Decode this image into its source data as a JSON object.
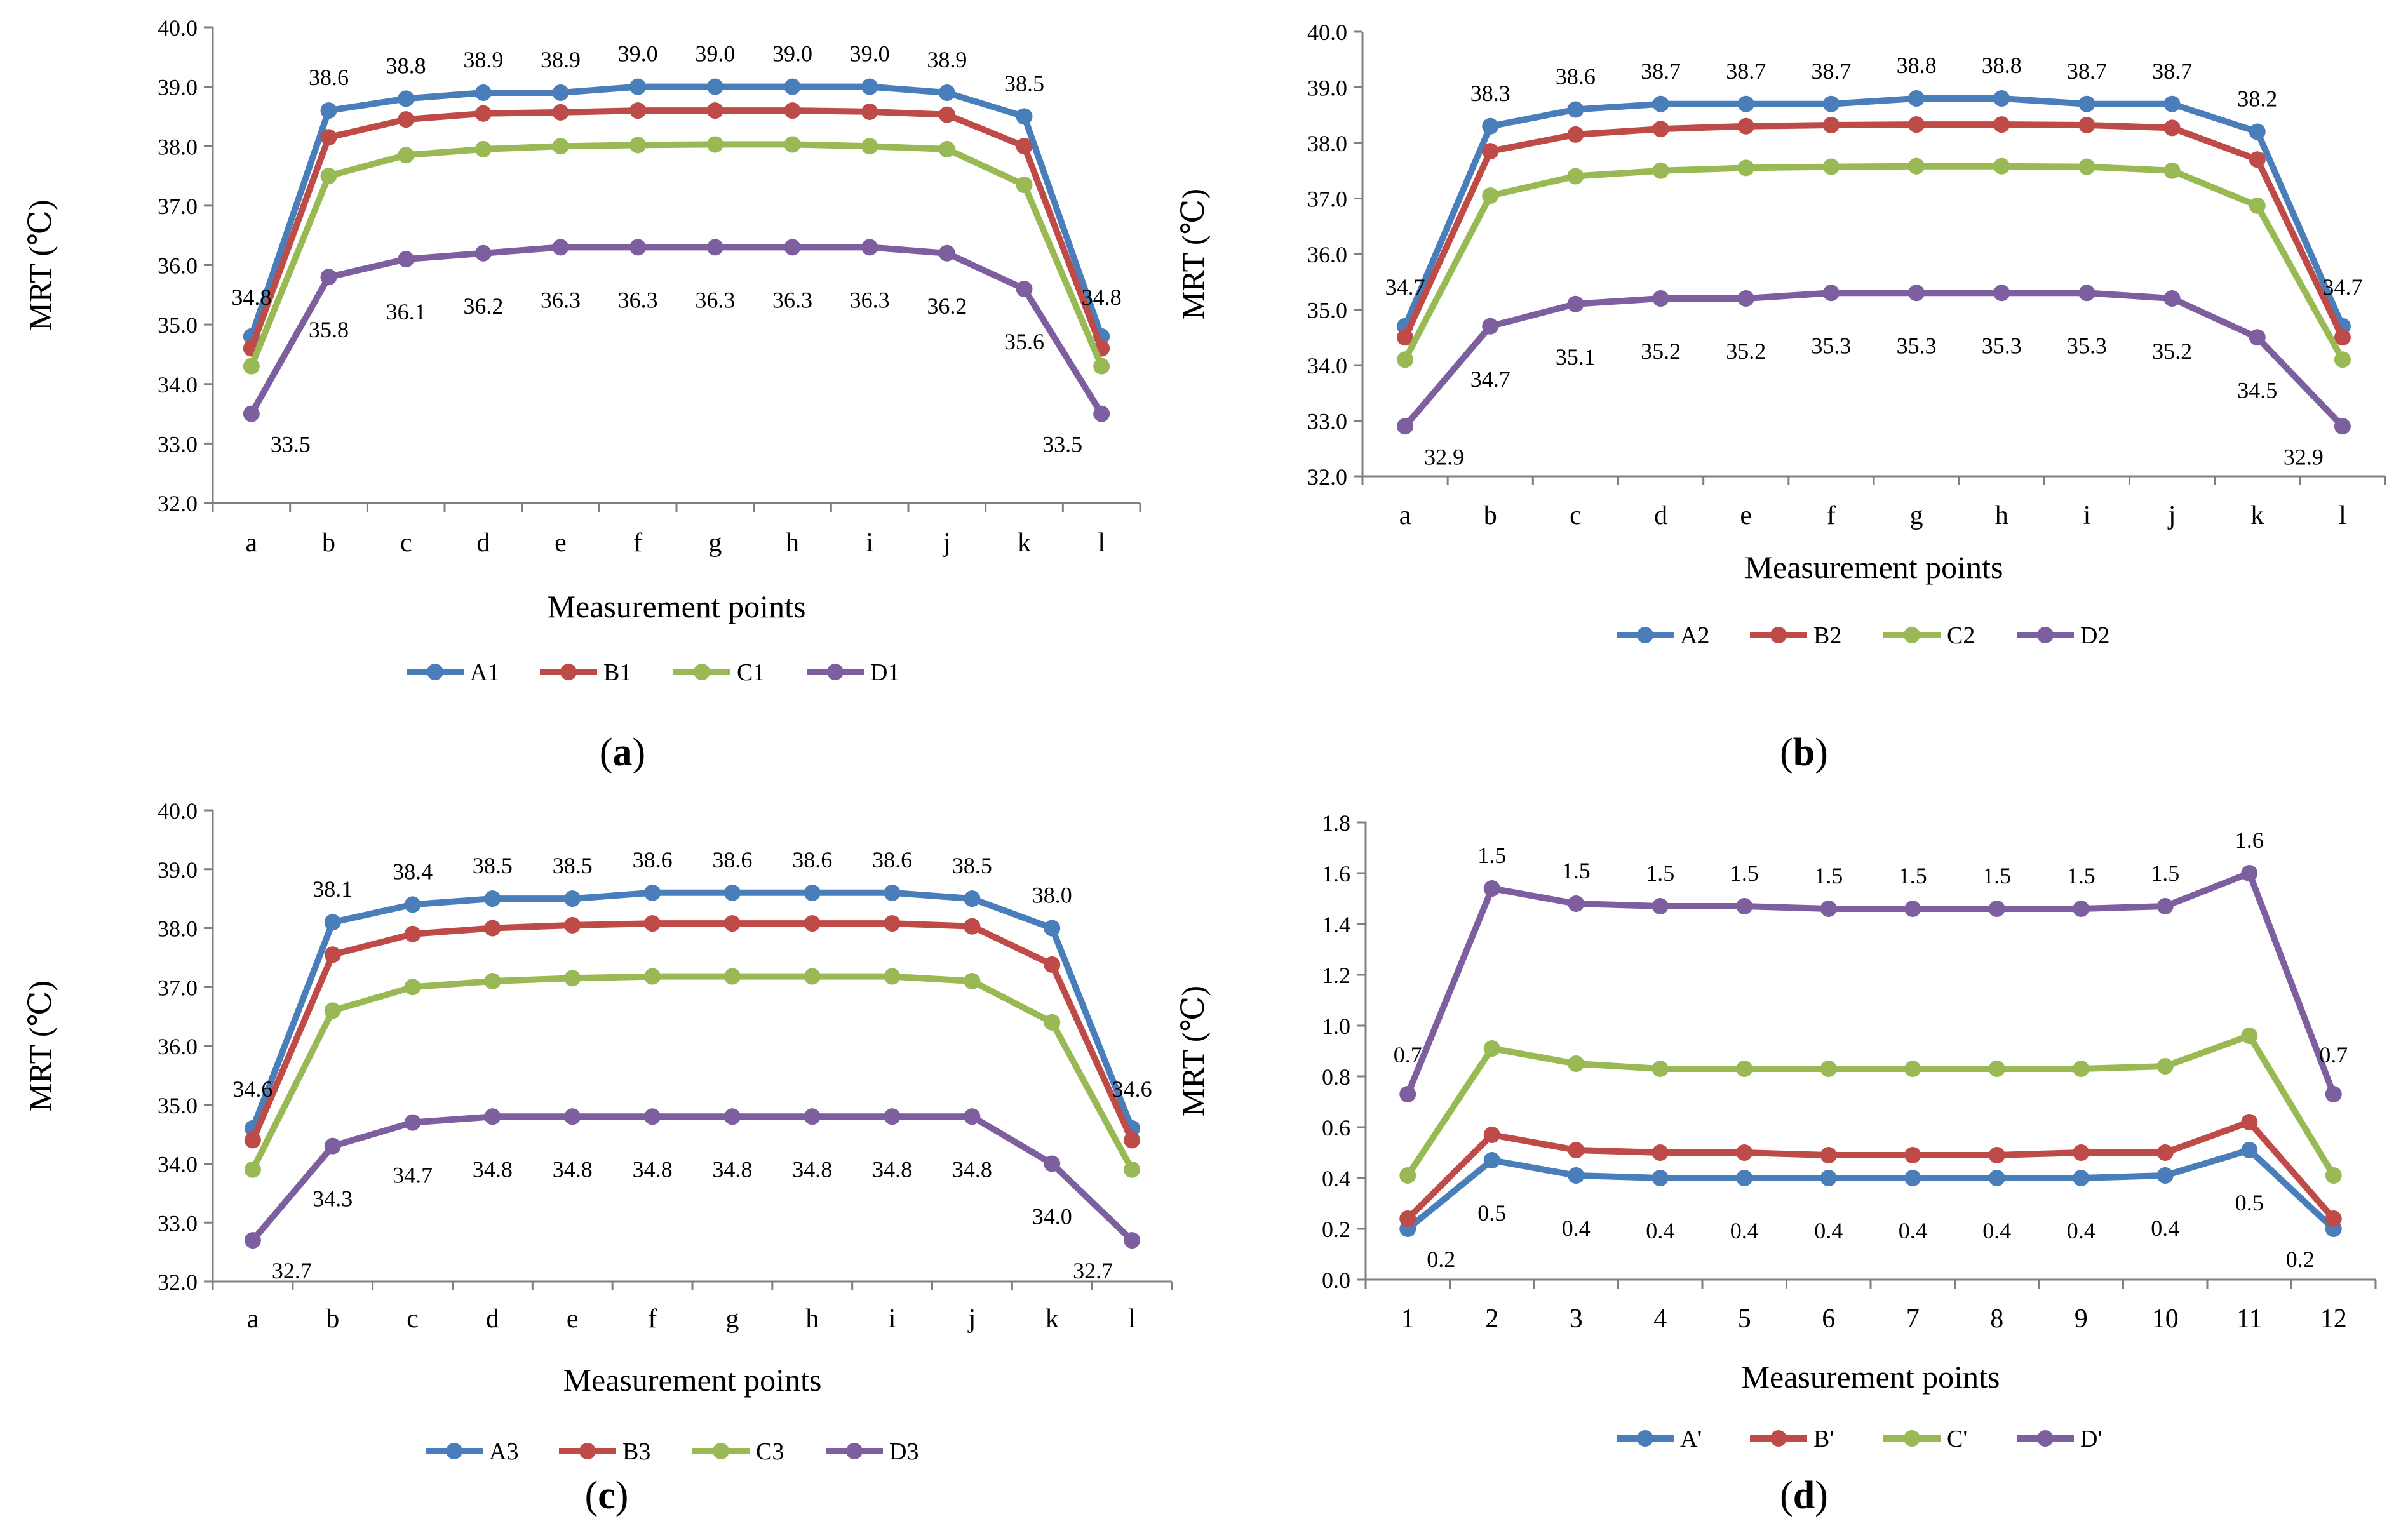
{
  "colors": {
    "A": "#4a7ebb",
    "B": "#be4b48",
    "C": "#98b954",
    "D": "#7d5fa0",
    "axis": "#7f7f7f",
    "text": "#000000"
  },
  "chart_data": [
    {
      "type": "line",
      "panel_label": "(a)",
      "panel_letter": "a",
      "xlabel": "Measurement points",
      "ylabel": "MRT (℃)",
      "ylim": [
        32.0,
        40.0
      ],
      "ytick_step": 1.0,
      "ytick_decimals": 1,
      "grid": false,
      "legend_position": "bottom",
      "categories": [
        "a",
        "b",
        "c",
        "d",
        "e",
        "f",
        "g",
        "h",
        "i",
        "j",
        "k",
        "l"
      ],
      "series": [
        {
          "key": "A",
          "name": "A1",
          "values": [
            34.8,
            38.6,
            38.8,
            38.9,
            38.9,
            39.0,
            39.0,
            39.0,
            39.0,
            38.9,
            38.5,
            34.8
          ]
        },
        {
          "key": "B",
          "name": "B1",
          "values": [
            34.6,
            38.15,
            38.45,
            38.55,
            38.57,
            38.6,
            38.6,
            38.6,
            38.58,
            38.53,
            38.0,
            34.6
          ]
        },
        {
          "key": "C",
          "name": "C1",
          "values": [
            34.3,
            37.5,
            37.85,
            37.95,
            38.0,
            38.02,
            38.03,
            38.03,
            38.0,
            37.95,
            37.35,
            34.3
          ]
        },
        {
          "key": "D",
          "name": "D1",
          "values": [
            33.5,
            35.8,
            36.1,
            36.2,
            36.3,
            36.3,
            36.3,
            36.3,
            36.3,
            36.2,
            35.6,
            33.5
          ]
        }
      ],
      "data_labels": [
        {
          "series": "A",
          "values": [
            "34.8",
            "38.6",
            "38.8",
            "38.9",
            "38.9",
            "39.0",
            "39.0",
            "39.0",
            "39.0",
            "38.9",
            "38.5",
            "34.8"
          ]
        },
        {
          "series": "D",
          "values": [
            "33.5",
            "35.8",
            "36.1",
            "36.2",
            "36.3",
            "36.3",
            "36.3",
            "36.3",
            "36.3",
            "36.2",
            "35.6",
            "33.5"
          ]
        }
      ]
    },
    {
      "type": "line",
      "panel_label": "(b)",
      "panel_letter": "b",
      "xlabel": "Measurement points",
      "ylabel": "MRT (℃)",
      "ylim": [
        32.0,
        40.0
      ],
      "ytick_step": 1.0,
      "ytick_decimals": 1,
      "grid": false,
      "legend_position": "bottom",
      "categories": [
        "a",
        "b",
        "c",
        "d",
        "e",
        "f",
        "g",
        "h",
        "i",
        "j",
        "k",
        "l"
      ],
      "series": [
        {
          "key": "A",
          "name": "A2",
          "values": [
            34.7,
            38.3,
            38.6,
            38.7,
            38.7,
            38.7,
            38.8,
            38.8,
            38.7,
            38.7,
            38.2,
            34.7
          ]
        },
        {
          "key": "B",
          "name": "B2",
          "values": [
            34.5,
            37.85,
            38.15,
            38.25,
            38.3,
            38.32,
            38.33,
            38.33,
            38.32,
            38.27,
            37.7,
            34.5
          ]
        },
        {
          "key": "C",
          "name": "C2",
          "values": [
            34.1,
            37.05,
            37.4,
            37.5,
            37.55,
            37.57,
            37.58,
            37.58,
            37.57,
            37.5,
            36.87,
            34.1
          ]
        },
        {
          "key": "D",
          "name": "D2",
          "values": [
            32.9,
            34.7,
            35.1,
            35.2,
            35.2,
            35.3,
            35.3,
            35.3,
            35.3,
            35.2,
            34.5,
            32.9
          ]
        }
      ],
      "data_labels": [
        {
          "series": "A",
          "values": [
            "34.7",
            "38.3",
            "38.6",
            "38.7",
            "38.7",
            "38.7",
            "38.8",
            "38.8",
            "38.7",
            "38.7",
            "38.2",
            "34.7"
          ]
        },
        {
          "series": "D",
          "values": [
            "32.9",
            "34.7",
            "35.1",
            "35.2",
            "35.2",
            "35.3",
            "35.3",
            "35.3",
            "35.3",
            "35.2",
            "34.5",
            "32.9"
          ]
        }
      ]
    },
    {
      "type": "line",
      "panel_label": "(c)",
      "panel_letter": "c",
      "xlabel": "Measurement points",
      "ylabel": "MRT (℃)",
      "ylim": [
        32.0,
        40.0
      ],
      "ytick_step": 1.0,
      "ytick_decimals": 1,
      "grid": false,
      "legend_position": "bottom",
      "categories": [
        "a",
        "b",
        "c",
        "d",
        "e",
        "f",
        "g",
        "h",
        "i",
        "j",
        "k",
        "l"
      ],
      "series": [
        {
          "key": "A",
          "name": "A3",
          "values": [
            34.6,
            38.1,
            38.4,
            38.5,
            38.5,
            38.6,
            38.6,
            38.6,
            38.6,
            38.5,
            38.0,
            34.6
          ]
        },
        {
          "key": "B",
          "name": "B3",
          "values": [
            34.4,
            37.55,
            37.9,
            38.0,
            38.05,
            38.08,
            38.08,
            38.08,
            38.08,
            38.03,
            37.38,
            34.4
          ]
        },
        {
          "key": "C",
          "name": "C3",
          "values": [
            33.9,
            36.6,
            37.0,
            37.1,
            37.15,
            37.18,
            37.18,
            37.18,
            37.18,
            37.1,
            36.4,
            33.9
          ]
        },
        {
          "key": "D",
          "name": "D3",
          "values": [
            32.7,
            34.3,
            34.7,
            34.8,
            34.8,
            34.8,
            34.8,
            34.8,
            34.8,
            34.8,
            34.0,
            32.7
          ]
        }
      ],
      "data_labels": [
        {
          "series": "A",
          "values": [
            "34.6",
            "38.1",
            "38.4",
            "38.5",
            "38.5",
            "38.6",
            "38.6",
            "38.6",
            "38.6",
            "38.5",
            "38.0",
            "34.6"
          ]
        },
        {
          "series": "D",
          "values": [
            "32.7",
            "34.3",
            "34.7",
            "34.8",
            "34.8",
            "34.8",
            "34.8",
            "34.8",
            "34.8",
            "34.8",
            "34.0",
            "32.7"
          ]
        }
      ]
    },
    {
      "type": "line",
      "panel_label": "(d)",
      "panel_letter": "d",
      "xlabel": "Measurement points",
      "ylabel": "MRT (℃)",
      "ylim": [
        0.0,
        1.8
      ],
      "ytick_step": 0.2,
      "ytick_decimals": 1,
      "grid": false,
      "legend_position": "bottom",
      "categories": [
        "1",
        "2",
        "3",
        "4",
        "5",
        "6",
        "7",
        "8",
        "9",
        "10",
        "11",
        "12"
      ],
      "series": [
        {
          "key": "A",
          "name": "A'",
          "values": [
            0.2,
            0.47,
            0.41,
            0.4,
            0.4,
            0.4,
            0.4,
            0.4,
            0.4,
            0.41,
            0.51,
            0.2
          ]
        },
        {
          "key": "B",
          "name": "B'",
          "values": [
            0.24,
            0.57,
            0.51,
            0.5,
            0.5,
            0.49,
            0.49,
            0.49,
            0.5,
            0.5,
            0.62,
            0.24
          ]
        },
        {
          "key": "C",
          "name": "C'",
          "values": [
            0.41,
            0.91,
            0.85,
            0.83,
            0.83,
            0.83,
            0.83,
            0.83,
            0.83,
            0.84,
            0.96,
            0.41
          ]
        },
        {
          "key": "D",
          "name": "D'",
          "values": [
            0.73,
            1.54,
            1.48,
            1.47,
            1.47,
            1.46,
            1.46,
            1.46,
            1.46,
            1.47,
            1.6,
            0.73
          ]
        }
      ],
      "data_labels": [
        {
          "series": "D",
          "values": [
            "0.7",
            "1.5",
            "1.5",
            "1.5",
            "1.5",
            "1.5",
            "1.5",
            "1.5",
            "1.5",
            "1.5",
            "1.6",
            "0.7"
          ]
        },
        {
          "series": "A",
          "values": [
            "0.2",
            "0.5",
            "0.4",
            "0.4",
            "0.4",
            "0.4",
            "0.4",
            "0.4",
            "0.4",
            "0.4",
            "0.5",
            "0.2"
          ]
        }
      ]
    }
  ]
}
